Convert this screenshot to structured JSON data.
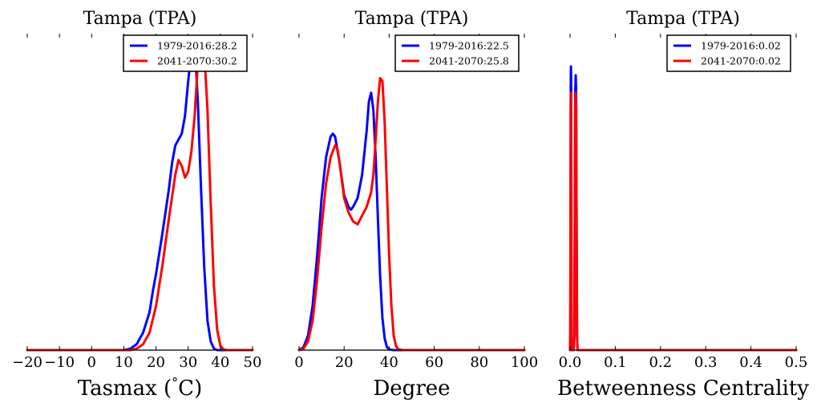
{
  "chart_data": [
    {
      "type": "line",
      "title": "Tampa (TPA)",
      "xlabel": "Tasmax (°C)",
      "xlabel_parts": {
        "prefix": "Tasmax (",
        "degree": "°",
        "suffix": "C)"
      },
      "ylabel": "",
      "xlim": [
        -20,
        50
      ],
      "ylim": [
        0,
        1.0
      ],
      "xticks": [
        -20,
        -10,
        0,
        10,
        20,
        30,
        40,
        50
      ],
      "xtick_labels": [
        "−20",
        "−10",
        "0",
        "10",
        "20",
        "30",
        "40",
        "50"
      ],
      "legend_position": "top-right",
      "grid": false,
      "series": [
        {
          "name": "1979-2016:28.2",
          "color": "#0000ff",
          "x": [
            -20,
            10,
            12,
            14,
            16,
            18,
            19,
            20,
            22,
            24,
            25,
            26,
            27,
            28,
            29,
            30,
            31,
            32,
            33,
            34,
            35,
            36,
            37,
            38,
            39,
            40,
            50
          ],
          "y": [
            0,
            0,
            0.005,
            0.02,
            0.06,
            0.13,
            0.2,
            0.26,
            0.4,
            0.55,
            0.64,
            0.7,
            0.72,
            0.74,
            0.8,
            0.92,
            1.02,
            1.05,
            0.85,
            0.55,
            0.28,
            0.1,
            0.03,
            0.005,
            0,
            0,
            0
          ]
        },
        {
          "name": "2041-2070:30.2",
          "color": "#ff0000",
          "x": [
            -20,
            12,
            14,
            16,
            18,
            20,
            21,
            22,
            24,
            26,
            27,
            28,
            29,
            30,
            31,
            32,
            33,
            34,
            35,
            36,
            37,
            38,
            39,
            40,
            41,
            42,
            50
          ],
          "y": [
            0,
            0,
            0.005,
            0.02,
            0.06,
            0.15,
            0.22,
            0.29,
            0.45,
            0.6,
            0.65,
            0.63,
            0.59,
            0.61,
            0.68,
            0.8,
            0.98,
            1.05,
            1.02,
            0.82,
            0.5,
            0.22,
            0.07,
            0.015,
            0.002,
            0,
            0
          ]
        }
      ]
    },
    {
      "type": "line",
      "title": "Tampa (TPA)",
      "xlabel": "Degree",
      "ylabel": "",
      "xlim": [
        0,
        100
      ],
      "ylim": [
        0,
        1.0
      ],
      "xticks": [
        0,
        20,
        40,
        60,
        80,
        100
      ],
      "xtick_labels": [
        "0",
        "20",
        "40",
        "60",
        "80",
        "100"
      ],
      "legend_position": "top-right",
      "grid": false,
      "series": [
        {
          "name": "1979-2016:22.5",
          "color": "#0000ff",
          "x": [
            0,
            2,
            4,
            6,
            8,
            10,
            12,
            14,
            15,
            16,
            18,
            20,
            22,
            23,
            24,
            26,
            28,
            30,
            31,
            32,
            33,
            34,
            35,
            36,
            37,
            38,
            39,
            40,
            42,
            100
          ],
          "y": [
            0,
            0.01,
            0.05,
            0.15,
            0.32,
            0.52,
            0.66,
            0.73,
            0.74,
            0.73,
            0.64,
            0.53,
            0.49,
            0.48,
            0.49,
            0.52,
            0.6,
            0.75,
            0.85,
            0.88,
            0.82,
            0.66,
            0.45,
            0.25,
            0.11,
            0.04,
            0.01,
            0.002,
            0,
            0
          ]
        },
        {
          "name": "2041-2070:25.8",
          "color": "#ff0000",
          "x": [
            0,
            2,
            4,
            6,
            8,
            10,
            12,
            14,
            16,
            17,
            18,
            20,
            22,
            24,
            26,
            28,
            30,
            32,
            33,
            34,
            35,
            36,
            37,
            38,
            39,
            40,
            41,
            42,
            43,
            44,
            46,
            100
          ],
          "y": [
            0,
            0.005,
            0.03,
            0.1,
            0.24,
            0.42,
            0.57,
            0.66,
            0.7,
            0.69,
            0.64,
            0.52,
            0.47,
            0.44,
            0.43,
            0.46,
            0.49,
            0.54,
            0.6,
            0.72,
            0.85,
            0.93,
            0.92,
            0.78,
            0.55,
            0.32,
            0.15,
            0.05,
            0.015,
            0.003,
            0,
            0
          ]
        }
      ]
    },
    {
      "type": "line",
      "title": "Tampa (TPA)",
      "xlabel": "Betweenness Centrality",
      "ylabel": "",
      "xlim": [
        0.0,
        0.5
      ],
      "ylim": [
        0,
        1.0
      ],
      "xticks": [
        0.0,
        0.1,
        0.2,
        0.3,
        0.4,
        0.5
      ],
      "xtick_labels": [
        "0.0",
        "0.1",
        "0.2",
        "0.3",
        "0.4",
        "0.5"
      ],
      "legend_position": "top-right",
      "grid": false,
      "series": [
        {
          "name": "1979-2016:0.02",
          "color": "#0000ff",
          "x": [
            0.0,
            0.0005,
            0.001,
            0.0015,
            0.002,
            0.0025,
            0.003,
            0.0035,
            0.004,
            0.008,
            0.0095,
            0.0105,
            0.0115,
            0.0125,
            0.0135,
            0.0145,
            0.0155,
            0.0165,
            0.02,
            0.5
          ],
          "y": [
            0,
            0.05,
            0.4,
            0.9,
            0.97,
            0.9,
            0.4,
            0.05,
            0,
            0,
            0.05,
            0.4,
            0.88,
            0.94,
            0.88,
            0.4,
            0.05,
            0,
            0,
            0
          ]
        },
        {
          "name": "2041-2070:0.02",
          "color": "#ff0000",
          "x": [
            0.0,
            0.0005,
            0.001,
            0.0015,
            0.002,
            0.0025,
            0.003,
            0.0035,
            0.004,
            0.008,
            0.0095,
            0.0105,
            0.0115,
            0.0125,
            0.0135,
            0.0145,
            0.0155,
            0.0165,
            0.02,
            0.5
          ],
          "y": [
            0,
            0.05,
            0.4,
            0.83,
            0.88,
            0.83,
            0.4,
            0.05,
            0,
            0,
            0.05,
            0.4,
            0.83,
            0.88,
            0.83,
            0.4,
            0.05,
            0,
            0,
            0
          ]
        }
      ]
    }
  ]
}
